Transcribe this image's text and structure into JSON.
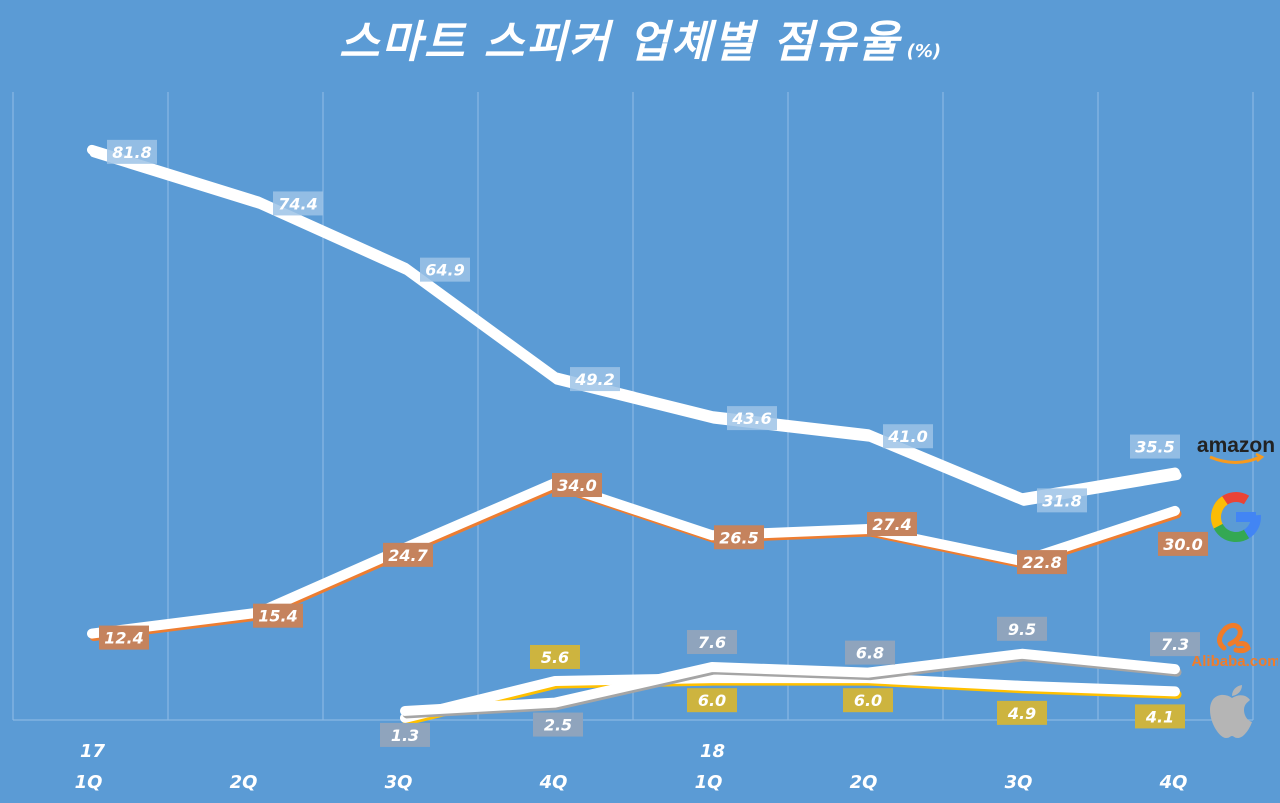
{
  "chart_data": {
    "type": "line",
    "title": "스마트 스피커 업체별 점유율",
    "unit": "(%)",
    "xlabel": "",
    "ylabel": "",
    "ylim": [
      0,
      90
    ],
    "grid": "vertical",
    "x_years": [
      "17",
      "",
      "",
      "",
      "18",
      "",
      "",
      ""
    ],
    "categories": [
      "1Q",
      "2Q",
      "3Q",
      "4Q",
      "1Q",
      "2Q",
      "3Q",
      "4Q"
    ],
    "series": [
      {
        "name": "amazon",
        "color": "#ffffff",
        "label_bg": "#9dc3e6",
        "label_position": "right",
        "values": [
          81.8,
          74.4,
          64.9,
          49.2,
          43.6,
          41.0,
          31.8,
          35.5
        ],
        "labels": [
          "81.8",
          "74.4",
          "64.9",
          "49.2",
          "43.6",
          "41.0",
          "31.8",
          "35.5"
        ]
      },
      {
        "name": "Google",
        "color": "#ed7d31",
        "label_bg": "#c5835d",
        "label_position": "below",
        "values": [
          12.4,
          15.4,
          24.7,
          34.0,
          26.5,
          27.4,
          22.8,
          30.0
        ],
        "labels": [
          "12.4",
          "15.4",
          "24.7",
          "34.0",
          "26.5",
          "27.4",
          "22.8",
          "30.0"
        ]
      },
      {
        "name": "Alibaba.com",
        "color": "#a5a5a5",
        "label_bg": "#8fa4bd",
        "label_position": "above",
        "values": [
          null,
          null,
          1.3,
          2.5,
          7.6,
          6.8,
          9.5,
          7.3
        ],
        "labels": [
          null,
          null,
          "1.3",
          "2.5",
          "7.6",
          "6.8",
          "9.5",
          "7.3"
        ]
      },
      {
        "name": "Apple",
        "color": "#ffc000",
        "label_bg": "#cdb43f",
        "label_position": "below",
        "values": [
          null,
          null,
          0.3,
          5.6,
          6.0,
          6.0,
          4.9,
          4.1
        ],
        "labels": [
          null,
          null,
          null,
          "5.6",
          "6.0",
          "6.0",
          "4.9",
          "4.1"
        ]
      }
    ],
    "legend": {
      "placement": "right",
      "entries": [
        "amazon",
        "Google",
        "Alibaba.com",
        "Apple"
      ]
    }
  }
}
